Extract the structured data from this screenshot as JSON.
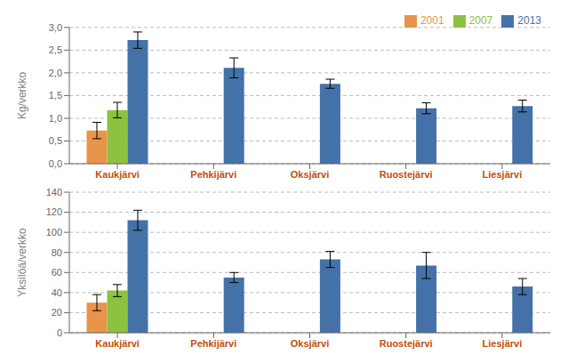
{
  "chart_data": [
    {
      "type": "bar",
      "categories": [
        "Kaukjärvi",
        "Pehkijärvi",
        "Oksjärvi",
        "Ruostejärvi",
        "Liesjärvi"
      ],
      "ylabel": "Kg/verkko",
      "ylim": [
        0,
        3.0
      ],
      "yticks": [
        {
          "value": 0.0,
          "label": "0,0"
        },
        {
          "value": 0.5,
          "label": "0,5"
        },
        {
          "value": 1.0,
          "label": "1,0"
        },
        {
          "value": 1.5,
          "label": "1,5"
        },
        {
          "value": 2.0,
          "label": "2,0"
        },
        {
          "value": 2.5,
          "label": "2,5"
        },
        {
          "value": 3.0,
          "label": "3,0"
        }
      ],
      "grid": true,
      "legend": "upper right",
      "series": [
        {
          "name": "2001",
          "color": "#E8944A",
          "values": [
            0.73,
            null,
            null,
            null,
            null
          ],
          "errors": [
            0.18,
            null,
            null,
            null,
            null
          ]
        },
        {
          "name": "2007",
          "color": "#8DC240",
          "values": [
            1.18,
            null,
            null,
            null,
            null
          ],
          "errors": [
            0.17,
            null,
            null,
            null,
            null
          ]
        },
        {
          "name": "2013",
          "color": "#4472A8",
          "values": [
            2.72,
            2.11,
            1.76,
            1.22,
            1.27
          ],
          "errors": [
            0.18,
            0.22,
            0.1,
            0.12,
            0.13
          ]
        }
      ]
    },
    {
      "type": "bar",
      "categories": [
        "Kaukjärvi",
        "Pehkijärvi",
        "Oksjärvi",
        "Ruostejärvi",
        "Liesjärvi"
      ],
      "ylabel": "Yksilöä/verkko",
      "ylim": [
        0,
        140
      ],
      "yticks": [
        0,
        20,
        40,
        60,
        80,
        100,
        120,
        140
      ],
      "grid": true,
      "series": [
        {
          "name": "2001",
          "color": "#E8944A",
          "values": [
            30,
            null,
            null,
            null,
            null
          ],
          "errors": [
            8,
            null,
            null,
            null,
            null
          ]
        },
        {
          "name": "2007",
          "color": "#8DC240",
          "values": [
            42,
            null,
            null,
            null,
            null
          ],
          "errors": [
            6,
            null,
            null,
            null,
            null
          ]
        },
        {
          "name": "2013",
          "color": "#4472A8",
          "values": [
            112,
            55,
            73,
            67,
            46
          ],
          "errors": [
            10,
            5,
            8,
            13,
            8
          ]
        }
      ]
    }
  ]
}
